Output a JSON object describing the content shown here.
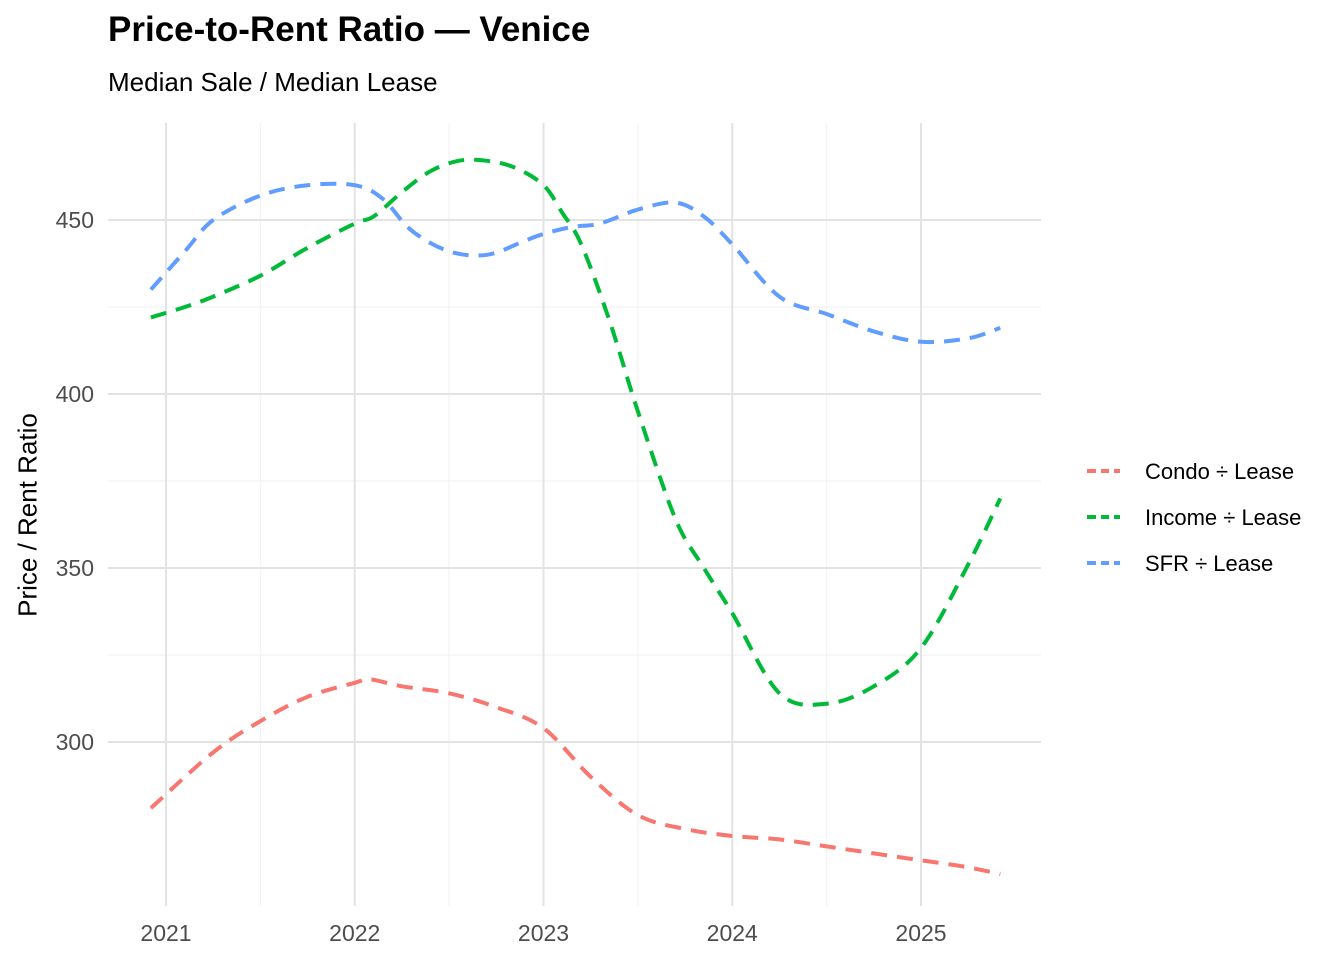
{
  "chart_data": {
    "type": "line",
    "title": "Price-to-Rent Ratio — Venice",
    "subtitle": "Median Sale / Median Lease",
    "xlabel": "",
    "ylabel": "Price / Rent Ratio",
    "xlim": [
      2020.92,
      2025.42
    ],
    "ylim": [
      254,
      472
    ],
    "x_ticks": [
      2021,
      2022,
      2023,
      2024,
      2025
    ],
    "y_ticks": [
      300,
      350,
      400,
      450
    ],
    "grid": true,
    "legend_position": "right",
    "line_style": "dashed",
    "series": [
      {
        "name": "Condo ÷ Lease",
        "color": "#F8766D",
        "x": [
          2020.92,
          2021.25,
          2021.5,
          2021.75,
          2022.0,
          2022.08,
          2022.25,
          2022.5,
          2022.75,
          2023.0,
          2023.25,
          2023.5,
          2023.75,
          2024.0,
          2024.25,
          2024.5,
          2024.75,
          2025.0,
          2025.25,
          2025.42
        ],
        "values": [
          281,
          297,
          306,
          313,
          317,
          318,
          316,
          314,
          310,
          304,
          290,
          279,
          275,
          273,
          272,
          270,
          268,
          266,
          264,
          262
        ]
      },
      {
        "name": "Income ÷ Lease",
        "color": "#00BA38",
        "x": [
          2020.92,
          2021.1,
          2021.25,
          2021.5,
          2021.75,
          2022.0,
          2022.1,
          2022.25,
          2022.4,
          2022.55,
          2022.7,
          2022.85,
          2023.0,
          2023.1,
          2023.2,
          2023.35,
          2023.5,
          2023.7,
          2023.85,
          2024.0,
          2024.25,
          2024.5,
          2024.75,
          2025.0,
          2025.25,
          2025.42
        ],
        "values": [
          422,
          425,
          428,
          434,
          442,
          449,
          451,
          458,
          464,
          467,
          467,
          465,
          460,
          452,
          443,
          421,
          395,
          364,
          350,
          337,
          314,
          311,
          316,
          327,
          351,
          370
        ]
      },
      {
        "name": "SFR ÷ Lease",
        "color": "#619CFF",
        "x": [
          2020.92,
          2021.1,
          2021.25,
          2021.5,
          2021.75,
          2022.0,
          2022.15,
          2022.3,
          2022.5,
          2022.7,
          2022.9,
          2023.0,
          2023.15,
          2023.3,
          2023.5,
          2023.7,
          2023.85,
          2024.0,
          2024.25,
          2024.5,
          2024.75,
          2025.0,
          2025.25,
          2025.42
        ],
        "values": [
          430,
          441,
          450,
          457,
          460,
          460,
          456,
          447,
          441,
          440,
          444,
          446,
          448,
          449,
          453,
          455,
          451,
          443,
          428,
          423,
          418,
          415,
          416,
          419
        ]
      }
    ]
  }
}
